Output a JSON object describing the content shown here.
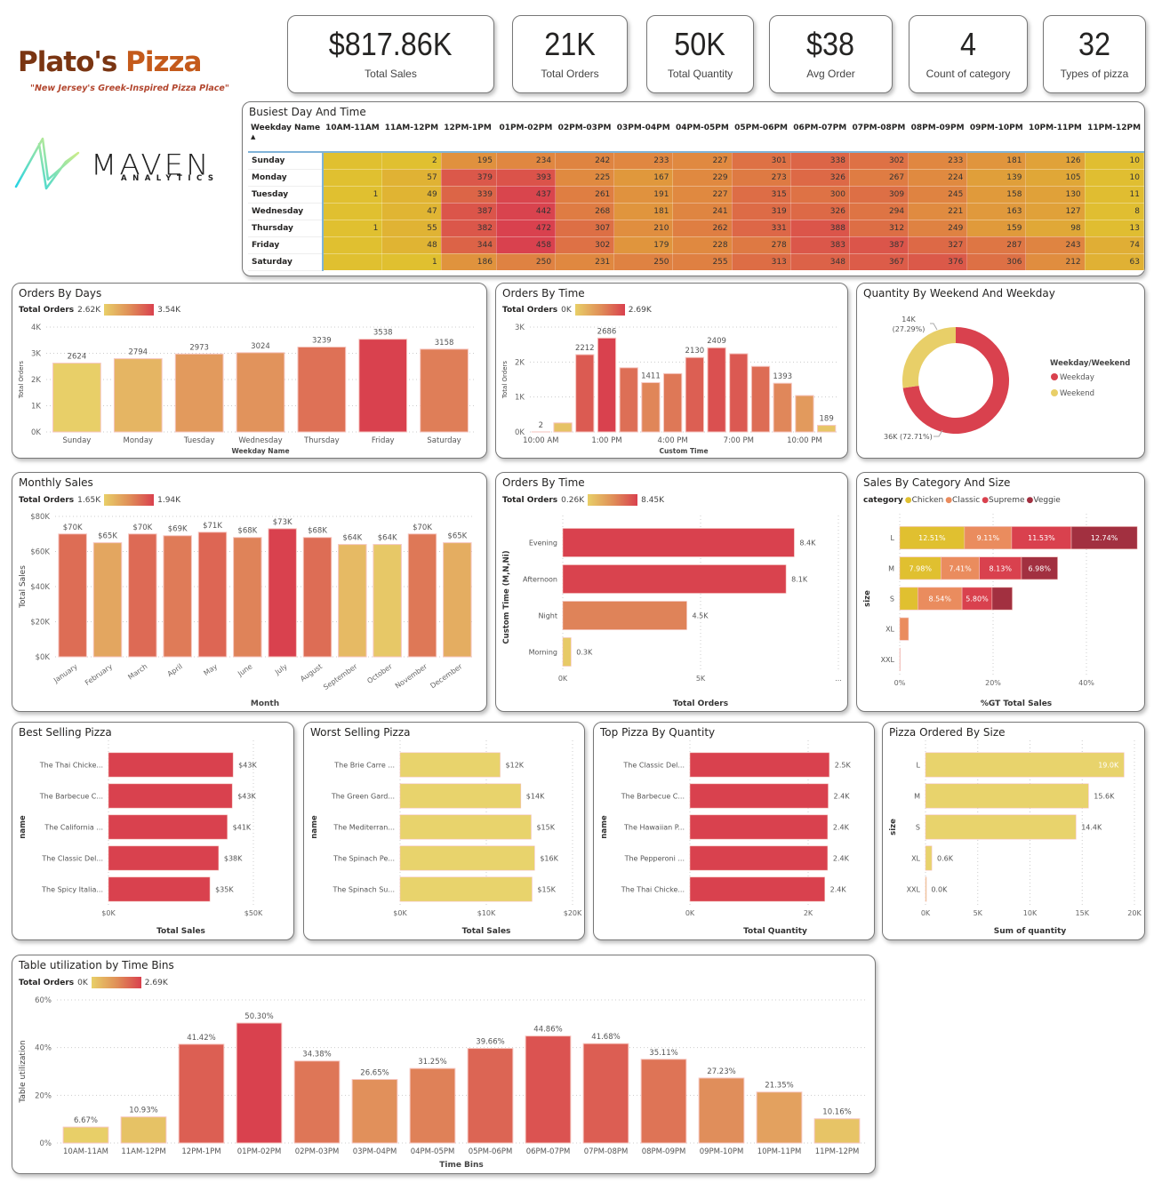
{
  "brand": {
    "name_part1": "Plato's",
    "name_part2": "Pizza",
    "tagline": "\"New Jersey's Greek-Inspired Pizza Place\"",
    "partner": "MAVEN",
    "partner_sub": "ANALYTICS"
  },
  "kpis": [
    {
      "value": "$817.86K",
      "label": "Total Sales"
    },
    {
      "value": "21K",
      "label": "Total Orders"
    },
    {
      "value": "50K",
      "label": "Total Quantity"
    },
    {
      "value": "$38",
      "label": "Avg Order"
    },
    {
      "value": "4",
      "label": "Count of category"
    },
    {
      "value": "32",
      "label": "Types of pizza"
    }
  ],
  "colors": {
    "low": "#e8cf68",
    "mid": "#e09058",
    "high": "#d9414e",
    "chicken": "#e0c030",
    "classic": "#ea8c5e",
    "supreme": "#d9414e",
    "veggie": "#a23040"
  },
  "heatmap": {
    "title": "Busiest Day And Time",
    "row_header": "Weekday Name",
    "sort_icon": "sort-ascending-icon",
    "columns": [
      "10AM-11AM",
      "11AM-12PM",
      "12PM-1PM",
      "01PM-02PM",
      "02PM-03PM",
      "03PM-04PM",
      "04PM-05PM",
      "05PM-06PM",
      "06PM-07PM",
      "07PM-08PM",
      "08PM-09PM",
      "09PM-10PM",
      "10PM-11PM",
      "11PM-12PM"
    ],
    "rows": [
      {
        "day": "Sunday",
        "values": [
          null,
          2,
          195,
          234,
          242,
          233,
          227,
          301,
          338,
          302,
          233,
          181,
          126,
          10
        ]
      },
      {
        "day": "Monday",
        "values": [
          null,
          57,
          379,
          393,
          225,
          167,
          229,
          273,
          326,
          267,
          224,
          139,
          105,
          10
        ]
      },
      {
        "day": "Tuesday",
        "values": [
          1,
          49,
          339,
          437,
          261,
          191,
          227,
          315,
          300,
          309,
          245,
          158,
          130,
          11
        ]
      },
      {
        "day": "Wednesday",
        "values": [
          null,
          47,
          387,
          442,
          268,
          181,
          241,
          319,
          326,
          294,
          221,
          163,
          127,
          8
        ]
      },
      {
        "day": "Thursday",
        "values": [
          1,
          55,
          382,
          472,
          307,
          210,
          262,
          331,
          388,
          312,
          249,
          159,
          98,
          13
        ]
      },
      {
        "day": "Friday",
        "values": [
          null,
          48,
          344,
          458,
          302,
          179,
          228,
          278,
          383,
          387,
          327,
          287,
          243,
          74
        ]
      },
      {
        "day": "Saturday",
        "values": [
          null,
          1,
          186,
          250,
          231,
          250,
          255,
          313,
          348,
          367,
          376,
          306,
          212,
          63
        ]
      }
    ]
  },
  "chart_data": [
    {
      "id": "orders_by_days",
      "type": "bar",
      "title": "Orders By Days",
      "legend_label": "Total Orders",
      "legend_min": "2.62K",
      "legend_max": "3.54K",
      "categories": [
        "Sunday",
        "Monday",
        "Tuesday",
        "Wednesday",
        "Thursday",
        "Friday",
        "Saturday"
      ],
      "values": [
        2624,
        2794,
        2973,
        3024,
        3239,
        3538,
        3158
      ],
      "xlabel": "Weekday Name",
      "ylabel": "Total Orders",
      "ylim": [
        0,
        4000
      ],
      "yticks": [
        "0K",
        "1K",
        "2K",
        "3K",
        "4K"
      ],
      "grid": true
    },
    {
      "id": "orders_by_time",
      "type": "bar",
      "title": "Orders By Time",
      "legend_label": "Total Orders",
      "legend_min": "0K",
      "legend_max": "2.69K",
      "categories": [
        "10:00 AM",
        "11:00 AM",
        "12:00 PM",
        "1:00 PM",
        "2:00 PM",
        "3:00 PM",
        "4:00 PM",
        "5:00 PM",
        "6:00 PM",
        "7:00 PM",
        "8:00 PM",
        "9:00 PM",
        "10:00 PM",
        "11:00 PM"
      ],
      "values": [
        2,
        259,
        2212,
        2686,
        1836,
        1411,
        1669,
        2130,
        2409,
        2238,
        1875,
        1393,
        1041,
        189
      ],
      "labels": [
        "2",
        "",
        "2212",
        "2686",
        "",
        "1411",
        "",
        "2130",
        "2409",
        "",
        "",
        "1393",
        "",
        "189"
      ],
      "tick_labels": [
        "10:00 AM",
        "",
        "",
        "1:00 PM",
        "",
        "",
        "4:00 PM",
        "",
        "",
        "7:00 PM",
        "",
        "",
        "10:00 PM",
        ""
      ],
      "xlabel": "Custom Time",
      "ylabel": "Total Orders",
      "ylim": [
        0,
        3000
      ],
      "yticks": [
        "0K",
        "1K",
        "2K",
        "3K"
      ],
      "grid": true
    },
    {
      "id": "qty_weekend_weekday",
      "type": "pie",
      "title": "Quantity By Weekend And Weekday",
      "legend_title": "Weekday/Weekend",
      "slices": [
        {
          "name": "Weekday",
          "value": 36,
          "pct": 72.71,
          "label": "36K (72.71%)"
        },
        {
          "name": "Weekend",
          "value": 14,
          "pct": 27.29,
          "label": "14K (27.29%)"
        }
      ],
      "legend": "right"
    },
    {
      "id": "monthly_sales",
      "type": "bar",
      "title": "Monthly Sales",
      "legend_label": "Total Orders",
      "legend_min": "1.65K",
      "legend_max": "1.94K",
      "categories": [
        "January",
        "February",
        "March",
        "April",
        "May",
        "June",
        "July",
        "August",
        "September",
        "October",
        "November",
        "December"
      ],
      "values": [
        70,
        65,
        70,
        69,
        71,
        68,
        73,
        68,
        64,
        64,
        70,
        65
      ],
      "labels": [
        "$70K",
        "$65K",
        "$70K",
        "$69K",
        "$71K",
        "$68K",
        "$73K",
        "$68K",
        "$64K",
        "$64K",
        "$70K",
        "$65K"
      ],
      "color_weights": [
        0.7,
        0.3,
        0.72,
        0.6,
        0.75,
        0.55,
        1,
        0.7,
        0.15,
        0.05,
        0.62,
        0.25
      ],
      "xlabel": "Month",
      "ylabel": "Total Sales",
      "ylim": [
        0,
        80
      ],
      "yticks": [
        "$0K",
        "$20K",
        "$40K",
        "$60K",
        "$80K"
      ],
      "grid": true
    },
    {
      "id": "orders_by_time_segment",
      "type": "bar",
      "orientation": "horizontal",
      "title": "Orders By Time",
      "legend_label": "Total Orders",
      "legend_min": "0.26K",
      "legend_max": "8.45K",
      "categories": [
        "Evening",
        "Afternoon",
        "Night",
        "Morning"
      ],
      "values": [
        8.4,
        8.1,
        4.5,
        0.3
      ],
      "labels": [
        "8.4K",
        "8.1K",
        "4.5K",
        "0.3K"
      ],
      "xlabel": "Total Orders",
      "ylabel": "Custom Time (M,N,Ni)",
      "xlim": [
        0,
        10
      ],
      "xticks": [
        "0K",
        "5K",
        "..."
      ],
      "grid": true
    },
    {
      "id": "sales_cat_size",
      "type": "bar",
      "orientation": "horizontal",
      "stacked": true,
      "title": "Sales By Category And Size",
      "legend_title": "category",
      "categories": [
        "L",
        "M",
        "S",
        "XL",
        "XXL"
      ],
      "series": [
        {
          "name": "Chicken",
          "values": [
            12.51,
            7.98,
            3.5,
            0,
            0
          ],
          "labels": [
            "12.51%",
            "7.98%",
            "",
            "",
            ""
          ]
        },
        {
          "name": "Classic",
          "values": [
            9.11,
            7.41,
            8.54,
            1.7,
            0
          ],
          "labels": [
            "9.11%",
            "7.41%",
            "8.54%",
            "",
            ""
          ]
        },
        {
          "name": "Supreme",
          "values": [
            11.53,
            8.13,
            5.8,
            0,
            0
          ],
          "labels": [
            "11.53%",
            "8.13%",
            "5.80%",
            "",
            ""
          ]
        },
        {
          "name": "Veggie",
          "values": [
            12.74,
            6.98,
            3.9,
            0,
            0.1
          ],
          "labels": [
            "12.74%",
            "6.98%",
            "",
            "",
            ""
          ]
        }
      ],
      "xlabel": "%GT Total Sales",
      "ylabel": "size",
      "xlim": [
        0,
        45
      ],
      "xticks": [
        "0%",
        "20%",
        "40%"
      ],
      "legend": "top"
    },
    {
      "id": "best_selling",
      "type": "bar",
      "orientation": "horizontal",
      "title": "Best Selling Pizza",
      "categories": [
        "The Thai Chicke...",
        "The Barbecue C...",
        "The California ...",
        "The Classic Del...",
        "The Spicy Italia..."
      ],
      "values": [
        43,
        42.7,
        41,
        38,
        35
      ],
      "labels": [
        "$43K",
        "$43K",
        "$41K",
        "$38K",
        "$35K"
      ],
      "xlabel": "Total Sales",
      "ylabel": "name",
      "xlim": [
        0,
        50
      ],
      "xticks": [
        "$0K",
        "$50K"
      ],
      "color": "#d9414e"
    },
    {
      "id": "worst_selling",
      "type": "bar",
      "orientation": "horizontal",
      "title": "Worst Selling Pizza",
      "categories": [
        "The Brie Carre ...",
        "The Green Gard...",
        "The Mediterran...",
        "The Spinach Pe...",
        "The Spinach Su..."
      ],
      "values": [
        11.6,
        14,
        15.2,
        15.6,
        15.3
      ],
      "labels": [
        "$12K",
        "$14K",
        "$15K",
        "$16K",
        "$15K"
      ],
      "xlabel": "Total Sales",
      "ylabel": "name",
      "xlim": [
        0,
        20
      ],
      "xticks": [
        "$0K",
        "$10K",
        "$20K"
      ],
      "color": "#e8d36c"
    },
    {
      "id": "top_quantity",
      "type": "bar",
      "orientation": "horizontal",
      "title": "Top Pizza By Quantity",
      "categories": [
        "The Classic Del...",
        "The Barbecue C...",
        "The Hawaiian P...",
        "The Pepperoni ...",
        "The Thai Chicke..."
      ],
      "values": [
        2.45,
        2.43,
        2.42,
        2.42,
        2.37
      ],
      "labels": [
        "2.5K",
        "2.4K",
        "2.4K",
        "2.4K",
        "2.4K"
      ],
      "xlabel": "Total Quantity",
      "ylabel": "name",
      "xlim": [
        0,
        3
      ],
      "xticks": [
        "0K",
        "2K"
      ],
      "color": "#d9414e"
    },
    {
      "id": "pizza_by_size",
      "type": "bar",
      "orientation": "horizontal",
      "title": "Pizza Ordered By Size",
      "categories": [
        "L",
        "M",
        "S",
        "XL",
        "XXL"
      ],
      "values": [
        19.0,
        15.6,
        14.4,
        0.6,
        0.03
      ],
      "labels": [
        "19.0K",
        "15.6K",
        "14.4K",
        "0.6K",
        "0.0K"
      ],
      "xlabel": "Sum of quantity",
      "ylabel": "size",
      "xlim": [
        0,
        20
      ],
      "xticks": [
        "0K",
        "5K",
        "10K",
        "15K",
        "20K"
      ],
      "color": "#e8d36c"
    },
    {
      "id": "table_utilization",
      "type": "bar",
      "title": "Table utilization by Time Bins",
      "legend_label": "Total Orders",
      "legend_min": "0K",
      "legend_max": "2.69K",
      "categories": [
        "10AM-11AM",
        "11AM-12PM",
        "12PM-1PM",
        "01PM-02PM",
        "02PM-03PM",
        "03PM-04PM",
        "04PM-05PM",
        "05PM-06PM",
        "06PM-07PM",
        "07PM-08PM",
        "08PM-09PM",
        "09PM-10PM",
        "10PM-11PM",
        "11PM-12PM"
      ],
      "values": [
        6.67,
        10.93,
        41.42,
        50.3,
        34.38,
        26.65,
        31.25,
        39.66,
        44.86,
        41.68,
        35.11,
        27.23,
        21.35,
        10.16
      ],
      "labels": [
        "6.67%",
        "10.93%",
        "41.42%",
        "50.30%",
        "34.38%",
        "26.65%",
        "31.25%",
        "39.66%",
        "44.86%",
        "41.68%",
        "35.11%",
        "27.23%",
        "21.35%",
        "10.16%"
      ],
      "xlabel": "Time Bins",
      "ylabel": "Table utilization",
      "ylim": [
        0,
        60
      ],
      "yticks": [
        "0%",
        "20%",
        "40%",
        "60%"
      ],
      "grid": true
    }
  ]
}
